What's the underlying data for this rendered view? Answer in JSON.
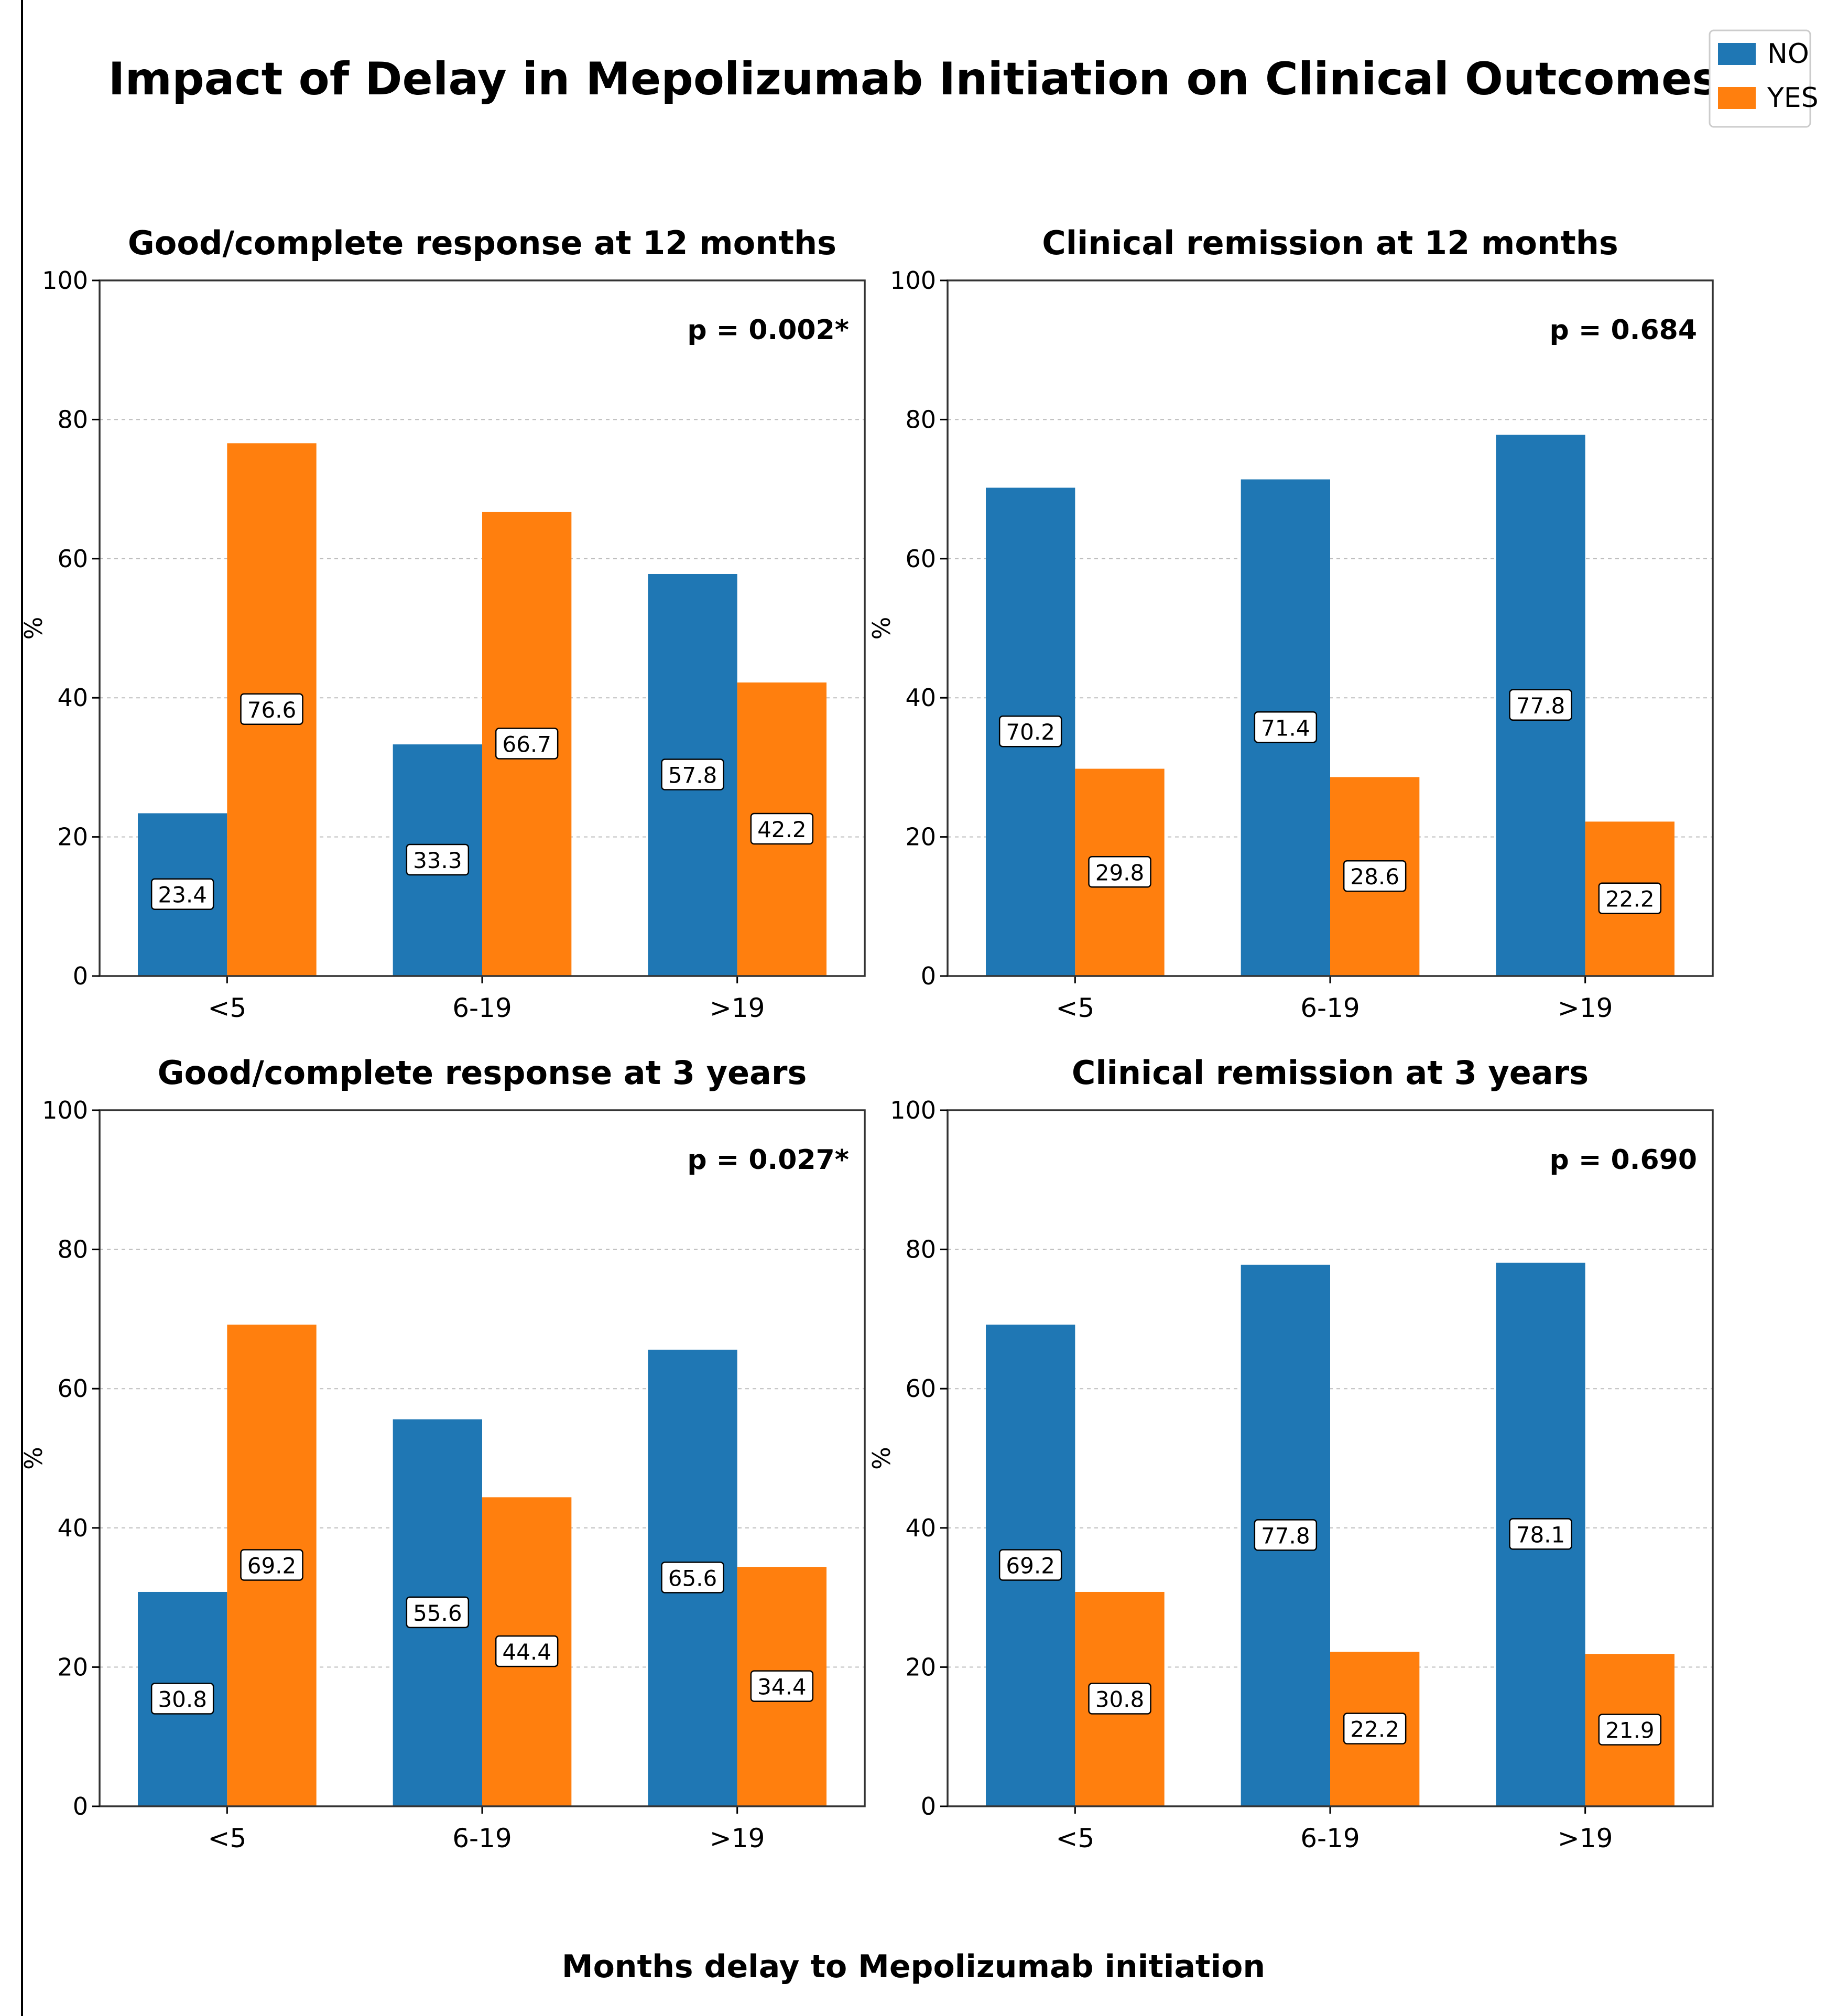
{
  "title": "Impact of Delay in Mepolizumab Initiation on Clinical Outcomes",
  "x_axis_title": "Months delay to Mepolizumab initiation",
  "legend": [
    {
      "label": "NO",
      "color": "#1f77b4"
    },
    {
      "label": "YES",
      "color": "#ff7f0e"
    }
  ],
  "chart_data": [
    {
      "type": "bar",
      "title": "Good/complete response at 12 months",
      "ylabel": "%",
      "ylim": [
        0,
        100
      ],
      "yticks": [
        0,
        20,
        40,
        60,
        80,
        100
      ],
      "categories": [
        "<5",
        "6-19",
        ">19"
      ],
      "series": [
        {
          "name": "NO",
          "values": [
            23.4,
            33.3,
            57.8
          ]
        },
        {
          "name": "YES",
          "values": [
            76.6,
            66.7,
            42.2
          ]
        }
      ],
      "annotation": "p = 0.002*",
      "grid": "y dashed"
    },
    {
      "type": "bar",
      "title": "Clinical remission at 12 months",
      "ylabel": "%",
      "ylim": [
        0,
        100
      ],
      "yticks": [
        0,
        20,
        40,
        60,
        80,
        100
      ],
      "categories": [
        "<5",
        "6-19",
        ">19"
      ],
      "series": [
        {
          "name": "NO",
          "values": [
            70.2,
            71.4,
            77.8
          ]
        },
        {
          "name": "YES",
          "values": [
            29.8,
            28.6,
            22.2
          ]
        }
      ],
      "annotation": "p = 0.684",
      "grid": "y dashed"
    },
    {
      "type": "bar",
      "title": "Good/complete response at 3 years",
      "ylabel": "%",
      "ylim": [
        0,
        100
      ],
      "yticks": [
        0,
        20,
        40,
        60,
        80,
        100
      ],
      "categories": [
        "<5",
        "6-19",
        ">19"
      ],
      "series": [
        {
          "name": "NO",
          "values": [
            30.8,
            55.6,
            65.6
          ]
        },
        {
          "name": "YES",
          "values": [
            69.2,
            44.4,
            34.4
          ]
        }
      ],
      "annotation": "p = 0.027*",
      "grid": "y dashed"
    },
    {
      "type": "bar",
      "title": "Clinical remission at 3 years",
      "ylabel": "%",
      "ylim": [
        0,
        100
      ],
      "yticks": [
        0,
        20,
        40,
        60,
        80,
        100
      ],
      "categories": [
        "<5",
        "6-19",
        ">19"
      ],
      "series": [
        {
          "name": "NO",
          "values": [
            69.2,
            77.8,
            78.1
          ]
        },
        {
          "name": "YES",
          "values": [
            30.8,
            22.2,
            21.9
          ]
        }
      ],
      "annotation": "p = 0.690",
      "grid": "y dashed"
    }
  ]
}
